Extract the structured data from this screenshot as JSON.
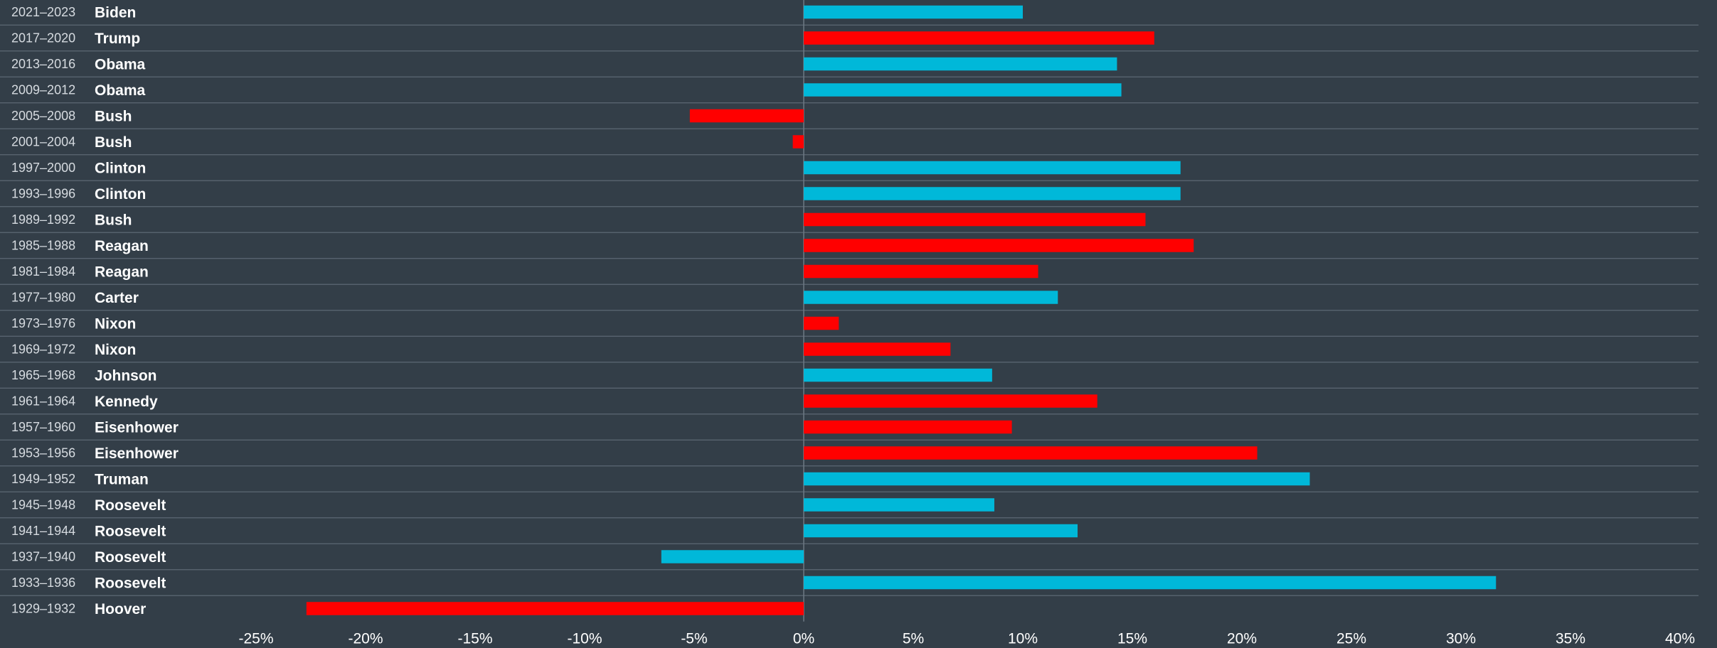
{
  "chart_data": {
    "type": "bar",
    "orientation": "horizontal",
    "categories": [
      "2021–2023",
      "2017–2020",
      "2013–2016",
      "2009–2012",
      "2005–2008",
      "2001–2004",
      "1997–2000",
      "1993–1996",
      "1989–1992",
      "1985–1988",
      "1981–1984",
      "1977–1980",
      "1973–1976",
      "1969–1972",
      "1965–1968",
      "1961–1964",
      "1957–1960",
      "1953–1956",
      "1949–1952",
      "1945–1948",
      "1941–1944",
      "1937–1940",
      "1933–1936",
      "1929–1932"
    ],
    "names": [
      "Biden",
      "Trump",
      "Obama",
      "Obama",
      "Bush",
      "Bush",
      "Clinton",
      "Clinton",
      "Bush",
      "Reagan",
      "Reagan",
      "Carter",
      "Nixon",
      "Nixon",
      "Johnson",
      "Kennedy",
      "Eisenhower",
      "Eisenhower",
      "Truman",
      "Roosevelt",
      "Roosevelt",
      "Roosevelt",
      "Roosevelt",
      "Hoover"
    ],
    "values": [
      10.0,
      16.0,
      14.3,
      14.5,
      -5.2,
      -0.5,
      17.2,
      17.2,
      15.6,
      17.8,
      10.7,
      11.6,
      1.6,
      6.7,
      8.6,
      13.4,
      9.5,
      20.7,
      23.1,
      8.7,
      12.5,
      -6.5,
      31.6,
      -22.7
    ],
    "colors": [
      "#00b8d9",
      "#ff0000",
      "#00b8d9",
      "#00b8d9",
      "#ff0000",
      "#ff0000",
      "#00b8d9",
      "#00b8d9",
      "#ff0000",
      "#ff0000",
      "#ff0000",
      "#00b8d9",
      "#ff0000",
      "#ff0000",
      "#00b8d9",
      "#ff0000",
      "#ff0000",
      "#ff0000",
      "#00b8d9",
      "#00b8d9",
      "#00b8d9",
      "#00b8d9",
      "#00b8d9",
      "#ff0000"
    ],
    "xlim": [
      -25,
      40
    ],
    "xticks": [
      {
        "value": -25,
        "label": "-25%"
      },
      {
        "value": -20,
        "label": "-20%"
      },
      {
        "value": -15,
        "label": "-15%"
      },
      {
        "value": -10,
        "label": "-10%"
      },
      {
        "value": -5,
        "label": "-5%"
      },
      {
        "value": 0,
        "label": "0%"
      },
      {
        "value": 5,
        "label": "5%"
      },
      {
        "value": 10,
        "label": "10%"
      },
      {
        "value": 15,
        "label": "15%"
      },
      {
        "value": 20,
        "label": "20%"
      },
      {
        "value": 25,
        "label": "25%"
      },
      {
        "value": 30,
        "label": "30%"
      },
      {
        "value": 35,
        "label": "35%"
      },
      {
        "value": 40,
        "label": "40%"
      }
    ]
  }
}
